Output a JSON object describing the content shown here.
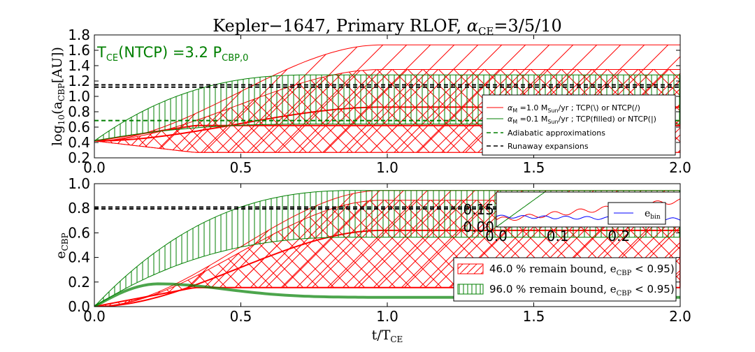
{
  "chart_data": {
    "title": "Kepler−1647, Primary RLOF, α_CE =3/5/10",
    "title_parts": {
      "main": "Kepler−1647, Primary RLOF, ",
      "alpha": "α",
      "sub": "CE",
      "value": "=3/5/10"
    },
    "xlabel": "t/T_CE",
    "xlabel_parts": {
      "main": "t/T",
      "sub": "CE"
    },
    "colors": {
      "red": "#ff0000",
      "green": "#007f00",
      "blue": "#0000ff",
      "black": "#000000"
    },
    "panels": [
      {
        "type": "line",
        "ylabel": "log10(a_CBP[AU])",
        "ylabel_parts": {
          "pre": "log",
          "sub1": "10",
          "mid": "(a",
          "sub2": "CBP",
          "post": "[AU])"
        },
        "xlim": [
          0.0,
          2.0
        ],
        "ylim": [
          0.2,
          1.8
        ],
        "xticks": [
          "0.0",
          "0.5",
          "1.0",
          "1.5",
          "2.0"
        ],
        "yticks": [
          "0.2",
          "0.4",
          "0.6",
          "0.8",
          "1.0",
          "1.2",
          "1.4",
          "1.6",
          "1.8"
        ],
        "annotation": {
          "main": "T",
          "sub1": "CE",
          "mid": "(NTCP) =3.2 P",
          "sub2": "CBP,0"
        },
        "bands": [
          {
            "name": "red α_CE=10",
            "color": "red",
            "hatch": "diagonal",
            "start": 0.42,
            "top": 1.67,
            "bottom": 0.27,
            "t_end": 0.98
          },
          {
            "name": "red α_CE=5",
            "color": "red",
            "hatch": "cross",
            "start": 0.42,
            "top": 1.35,
            "bottom": 0.27,
            "t_end": 0.98
          },
          {
            "name": "red α_CE=3",
            "color": "red",
            "hatch": "none",
            "start": 0.42,
            "top": 0.86,
            "bottom": 0.62,
            "t_end": 0.98
          },
          {
            "name": "green",
            "color": "green",
            "hatch": "vertical",
            "start": 0.42,
            "top": 1.28,
            "bottom": 0.64,
            "t_end": 0.75
          }
        ],
        "hlines": [
          {
            "name": "runaway 1",
            "color": "black",
            "y": 1.15
          },
          {
            "name": "runaway 2",
            "color": "black",
            "y": 1.12
          },
          {
            "name": "adiabatic",
            "color": "green",
            "y": 0.685
          }
        ],
        "legend": {
          "placement": "right",
          "entries": [
            {
              "label_math": "α",
              "label_sub": "M",
              "label_mid": " =1.0 M",
              "label_sub2": "Sun",
              "label_post": "/yr",
              "label_text": " ; TCP(\\) or NTCP(/)",
              "color": "red",
              "style": "solid"
            },
            {
              "label_math": "α",
              "label_sub": "M",
              "label_mid": " =0.1 M",
              "label_sub2": "Sun",
              "label_post": "/yr",
              "label_text": " ; TCP(filled) or NTCP(|)",
              "color": "green",
              "style": "solid"
            },
            {
              "label_text": "Adiabatic approximations",
              "color": "green",
              "style": "dashed"
            },
            {
              "label_text": "Runaway expansions",
              "color": "black",
              "style": "dashed"
            }
          ]
        }
      },
      {
        "type": "line",
        "ylabel": "e_CBP",
        "ylabel_parts": {
          "main": "e",
          "sub": "CBP"
        },
        "xlim": [
          0.0,
          2.0
        ],
        "ylim": [
          0.0,
          1.0
        ],
        "xticks": [
          "0.0",
          "0.5",
          "1.0",
          "1.5",
          "2.0"
        ],
        "yticks": [
          "0.0",
          "0.2",
          "0.4",
          "0.6",
          "0.8",
          "1.0"
        ],
        "bands": [
          {
            "name": "red outer",
            "color": "red",
            "hatch": "diagonal",
            "start": 0.0,
            "top": 0.945,
            "bottom": 0.155,
            "t_end": 0.98
          },
          {
            "name": "red inner",
            "color": "red",
            "hatch": "cross",
            "start": 0.0,
            "top": 0.865,
            "bottom": 0.155,
            "t_end": 0.98
          },
          {
            "name": "red lower",
            "color": "red",
            "hatch": "none",
            "start": 0.0,
            "top": 0.62,
            "bottom": 0.155,
            "t_end": 0.98
          },
          {
            "name": "green",
            "color": "green",
            "hatch": "vertical",
            "start": 0.0,
            "top": 0.945,
            "bottom": 0.565,
            "t_end": 0.9
          }
        ],
        "green_thick_curve": {
          "peak_t": 0.22,
          "peak": 0.185,
          "final": 0.075
        },
        "hlines": [
          {
            "name": "runaway 1",
            "color": "black",
            "y": 0.81
          },
          {
            "name": "runaway 2",
            "color": "black",
            "y": 0.795
          }
        ],
        "inset": {
          "xlim": [
            0.0,
            0.3
          ],
          "ylim": [
            0.0,
            0.3
          ],
          "xticks": [
            "0.0",
            "0.1",
            "0.2"
          ],
          "yticks": [
            "0.00",
            "0.15"
          ],
          "legend": {
            "label": "e",
            "sub": "bin",
            "color": "blue"
          }
        },
        "legend": {
          "placement": "lower right",
          "entries": [
            {
              "label_a": "46.0",
              "label_b": " % remain bound, e",
              "label_sub": "CBP",
              "label_c": " < 0.95)",
              "color": "red",
              "hatch": "diagonal"
            },
            {
              "label_a": "96.0",
              "label_b": " % remain bound, e",
              "label_sub": "CBP",
              "label_c": " < 0.95)",
              "color": "green",
              "hatch": "vertical"
            }
          ]
        }
      }
    ]
  }
}
